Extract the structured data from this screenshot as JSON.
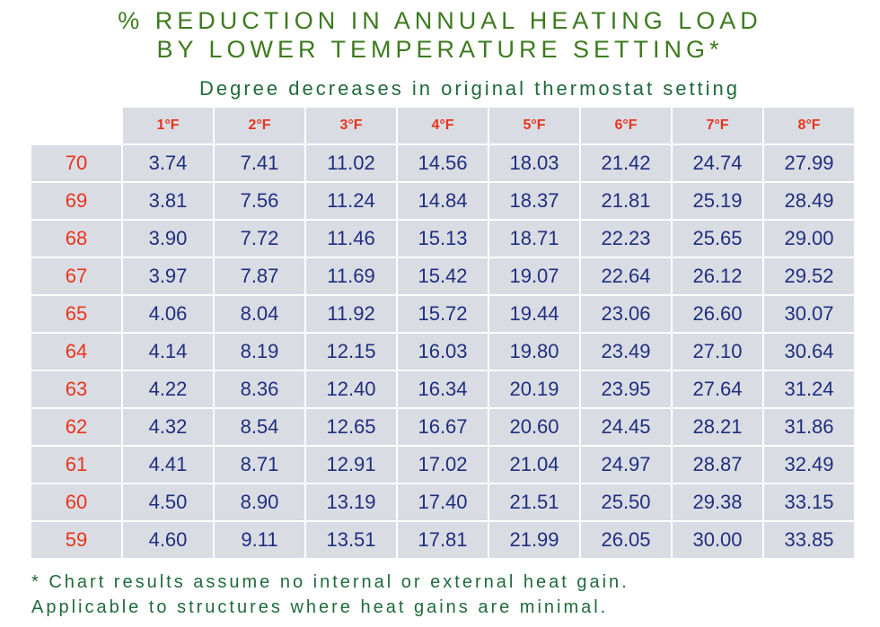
{
  "title_line1": "% REDUCTION IN ANNUAL HEATING LOAD",
  "title_line2": "BY LOWER TEMPERATURE SETTING*",
  "subtitle": "Degree decreases in original thermostat setting",
  "footnote_line1": "* Chart results assume no internal or external heat gain.",
  "footnote_line2": "Applicable to structures where heat gains are minimal.",
  "colors": {
    "title": "#3d7a1e",
    "header_text": "#e8341c",
    "cell_text": "#1f2f80",
    "cell_bg": "#dadce3"
  },
  "chart_data": {
    "type": "table",
    "title": "% REDUCTION IN ANNUAL HEATING LOAD BY LOWER TEMPERATURE SETTING*",
    "column_headers": [
      "1°F",
      "2°F",
      "3°F",
      "4°F",
      "5°F",
      "6°F",
      "7°F",
      "8°F"
    ],
    "rows": [
      {
        "label": "70",
        "values": [
          "3.74",
          "7.41",
          "11.02",
          "14.56",
          "18.03",
          "21.42",
          "24.74",
          "27.99"
        ]
      },
      {
        "label": "69",
        "values": [
          "3.81",
          "7.56",
          "11.24",
          "14.84",
          "18.37",
          "21.81",
          "25.19",
          "28.49"
        ]
      },
      {
        "label": "68",
        "values": [
          "3.90",
          "7.72",
          "11.46",
          "15.13",
          "18.71",
          "22.23",
          "25.65",
          "29.00"
        ]
      },
      {
        "label": "67",
        "values": [
          "3.97",
          "7.87",
          "11.69",
          "15.42",
          "19.07",
          "22.64",
          "26.12",
          "29.52"
        ]
      },
      {
        "label": "65",
        "values": [
          "4.06",
          "8.04",
          "11.92",
          "15.72",
          "19.44",
          "23.06",
          "26.60",
          "30.07"
        ]
      },
      {
        "label": "64",
        "values": [
          "4.14",
          "8.19",
          "12.15",
          "16.03",
          "19.80",
          "23.49",
          "27.10",
          "30.64"
        ]
      },
      {
        "label": "63",
        "values": [
          "4.22",
          "8.36",
          "12.40",
          "16.34",
          "20.19",
          "23.95",
          "27.64",
          "31.24"
        ]
      },
      {
        "label": "62",
        "values": [
          "4.32",
          "8.54",
          "12.65",
          "16.67",
          "20.60",
          "24.45",
          "28.21",
          "31.86"
        ]
      },
      {
        "label": "61",
        "values": [
          "4.41",
          "8.71",
          "12.91",
          "17.02",
          "21.04",
          "24.97",
          "28.87",
          "32.49"
        ]
      },
      {
        "label": "60",
        "values": [
          "4.50",
          "8.90",
          "13.19",
          "17.40",
          "21.51",
          "25.50",
          "29.38",
          "33.15"
        ]
      },
      {
        "label": "59",
        "values": [
          "4.60",
          "9.11",
          "13.51",
          "17.81",
          "21.99",
          "26.05",
          "30.00",
          "33.85"
        ]
      }
    ]
  }
}
